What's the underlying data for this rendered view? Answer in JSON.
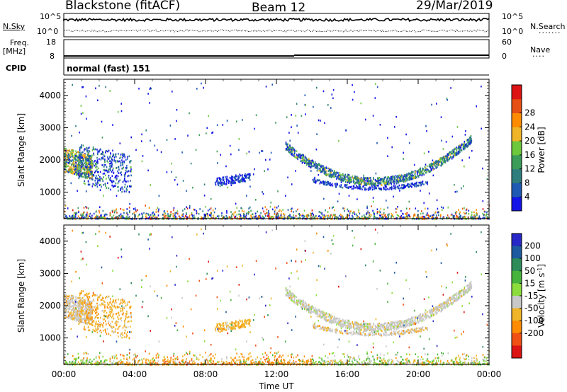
{
  "header": {
    "station": "Blackstone (fitACF)",
    "beam": "Beam 12",
    "date": "29/Mar/2019"
  },
  "nsky_panel": {
    "left_label": "N.Sky",
    "right_label": "N.Search",
    "left_ticks": [
      "10^5",
      "10^0"
    ],
    "right_ticks": [
      "10^5",
      "10^0"
    ]
  },
  "freq_panel": {
    "left_label_line1": "Freq.",
    "left_label_line2": "[MHz]",
    "right_label": "Nave",
    "left_ticks": [
      "18",
      "8"
    ],
    "right_ticks": [
      "60",
      "0"
    ],
    "freq_mhz": [
      {
        "from": "00:00",
        "to": "13:00",
        "value": 8.4
      },
      {
        "from": "13:00",
        "to": "24:00",
        "value": 8.9
      }
    ]
  },
  "cpid": {
    "label": "CPID",
    "value": "normal (fast) 151"
  },
  "chart_data": [
    {
      "type": "heatmap",
      "name_hint": "power",
      "ylabel": "Slant Range [km]",
      "xlabel": "Time UT",
      "ylim": [
        180,
        4500
      ],
      "xlim": [
        "00:00",
        "24:00"
      ],
      "x_ticks": [
        "00:00",
        "04:00",
        "08:00",
        "12:00",
        "16:00",
        "20:00",
        "00:00"
      ],
      "y_ticks": [
        "1000",
        "2000",
        "3000",
        "4000"
      ],
      "colorbar": {
        "label": "Power [dB]",
        "ticks": [
          "4",
          "8",
          "12",
          "16",
          "20",
          "24",
          "28"
        ],
        "colors": [
          "#1414e6",
          "#1e5ab4",
          "#2f7e7e",
          "#3c9c5a",
          "#6ec83c",
          "#f0b428",
          "#ff8c00",
          "#e65014",
          "#dc1414"
        ]
      }
    },
    {
      "type": "heatmap",
      "name_hint": "velocity",
      "ylabel": "Slant Range [km]",
      "xlabel": "Time UT",
      "ylim": [
        180,
        4500
      ],
      "xlim": [
        "00:00",
        "24:00"
      ],
      "x_ticks": [
        "00:00",
        "04:00",
        "08:00",
        "12:00",
        "16:00",
        "20:00",
        "00:00"
      ],
      "y_ticks": [
        "1000",
        "2000",
        "3000",
        "4000"
      ],
      "colorbar": {
        "label_main": "Velocity [m s",
        "label_sup": "-1",
        "label_end": "]",
        "ticks": [
          "200",
          "100",
          "50",
          "15",
          "-15",
          "-50",
          "-100",
          "-200"
        ],
        "colors": [
          "#2828c8",
          "#1e5aa0",
          "#2d8c5a",
          "#46b43c",
          "#8cdc3c",
          "#c8c8c8",
          "#f0b428",
          "#ff8c00",
          "#f05014",
          "#dc1414"
        ]
      }
    }
  ]
}
